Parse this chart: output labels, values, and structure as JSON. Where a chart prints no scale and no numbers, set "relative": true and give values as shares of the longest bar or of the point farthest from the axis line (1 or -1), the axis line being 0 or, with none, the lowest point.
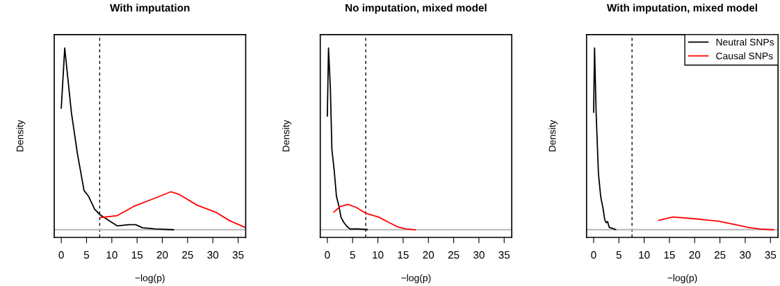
{
  "chart_data": [
    {
      "type": "line",
      "title": "With imputation",
      "xlabel": "−log(p)",
      "ylabel": "Density",
      "relative": true,
      "xlim": [
        -1.4,
        36.5
      ],
      "xticks": [
        0,
        5,
        10,
        15,
        20,
        25,
        30,
        35
      ],
      "grid": false,
      "legend": false,
      "line_style": "solid",
      "ref_lines": [
        {
          "axis": "x",
          "value": 7.6,
          "color": "#000000",
          "line_style": "dashed"
        },
        {
          "axis": "y",
          "value": 0,
          "color": "#bebebe",
          "line_style": "solid"
        }
      ],
      "series": [
        {
          "color": "#000000",
          "x": [
            0,
            0.68,
            2.0,
            3.2,
            4.5,
            5.4,
            6.6,
            7.7,
            9.7,
            11.1,
            13.4,
            14.7,
            16.1,
            18.8,
            22.2
          ],
          "values": [
            0.67,
            1,
            0.645,
            0.418,
            0.216,
            0.184,
            0.113,
            0.082,
            0.046,
            0.021,
            0.028,
            0.028,
            0.011,
            0.004,
            0
          ]
        },
        {
          "color": "#ff0000",
          "x": [
            7.7,
            11.1,
            14.3,
            17.9,
            21.7,
            23.3,
            26.9,
            30.6,
            33.3,
            36.3
          ],
          "values": [
            0.067,
            0.078,
            0.128,
            0.167,
            0.209,
            0.195,
            0.135,
            0.096,
            0.05,
            0.014
          ]
        }
      ]
    },
    {
      "type": "line",
      "title": "No imputation, mixed model",
      "xlabel": "−log(p)",
      "ylabel": "Density",
      "relative": true,
      "xlim": [
        -1.4,
        36.5
      ],
      "xticks": [
        0,
        5,
        10,
        15,
        20,
        25,
        30,
        35
      ],
      "grid": false,
      "legend": false,
      "line_style": "solid",
      "ref_lines": [
        {
          "axis": "x",
          "value": 7.6,
          "color": "#000000",
          "line_style": "dashed"
        },
        {
          "axis": "y",
          "value": 0,
          "color": "#bebebe",
          "line_style": "solid"
        }
      ],
      "series": [
        {
          "color": "#000000",
          "x": [
            0,
            0.23,
            0.6,
            0.9,
            1.36,
            1.8,
            2.27,
            2.7,
            3.2,
            3.85,
            4.5,
            5.7,
            7.9
          ],
          "values": [
            0.626,
            1,
            0.778,
            0.443,
            0.326,
            0.184,
            0.133,
            0.069,
            0.043,
            0.019,
            0.004,
            0.005,
            0.001
          ]
        },
        {
          "color": "#ff0000",
          "x": [
            1.27,
            2.5,
            4.1,
            5.7,
            7.7,
            10.2,
            12.0,
            13.8,
            15.6,
            17.4
          ],
          "values": [
            0.097,
            0.127,
            0.14,
            0.123,
            0.09,
            0.069,
            0.043,
            0.017,
            0.004,
            0
          ]
        }
      ]
    },
    {
      "type": "line",
      "title": "With imputation, mixed model",
      "xlabel": "−log(p)",
      "ylabel": "Density",
      "relative": true,
      "xlim": [
        -1.4,
        36.5
      ],
      "xticks": [
        0,
        5,
        10,
        15,
        20,
        25,
        30,
        35
      ],
      "grid": false,
      "legend": "top right",
      "line_style": "solid",
      "ref_lines": [
        {
          "axis": "x",
          "value": 7.6,
          "color": "#000000",
          "line_style": "dashed"
        },
        {
          "axis": "y",
          "value": 0,
          "color": "#bebebe",
          "line_style": "solid"
        }
      ],
      "series": [
        {
          "name": "Neutral SNPs",
          "color": "#000000",
          "x": [
            0,
            0.18,
            0.5,
            0.95,
            1.4,
            1.86,
            2.2,
            2.5,
            2.76,
            3.1,
            3.7,
            4.35
          ],
          "values": [
            0.647,
            1.0,
            0.641,
            0.31,
            0.182,
            0.118,
            0.055,
            0.039,
            0.045,
            0.013,
            0.008,
            0.001
          ]
        },
        {
          "name": "Causal SNPs",
          "color": "#ff0000",
          "x": [
            12.9,
            15.7,
            20.2,
            24.7,
            27.9,
            30.6,
            32.9,
            35.6
          ],
          "values": [
            0.052,
            0.07,
            0.06,
            0.047,
            0.029,
            0.013,
            0.004,
            0
          ]
        }
      ]
    }
  ]
}
